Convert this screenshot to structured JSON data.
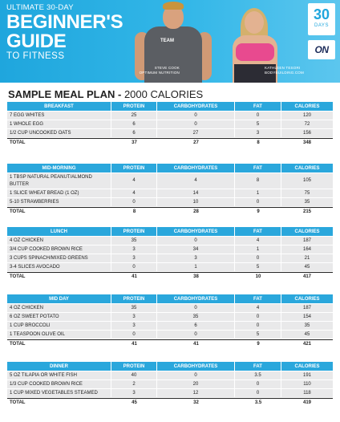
{
  "hero": {
    "subtitle": "ULTIMATE 30-DAY",
    "title_line1": "BEGINNER'S",
    "title_line2": "GUIDE",
    "title_line3": "TO FITNESS",
    "shirt_text": "TEAM",
    "caption_left": [
      "STEVE COOK",
      "OPTIMUM NUTRITION"
    ],
    "caption_right": [
      "KATHLEEN TESORI",
      "BODYBUILDING.COM"
    ],
    "badge_number": "30",
    "badge_label": "DAYS",
    "logo_text": "ON"
  },
  "plan": {
    "heading_bold": "SAMPLE MEAL PLAN -",
    "heading_rest": " 2000 CALORIES"
  },
  "columns": [
    "PROTEIN",
    "CARBOHYDRATES",
    "FAT",
    "CALORIES"
  ],
  "total_label": "TOTAL",
  "meals": [
    {
      "name": "BREAKFAST",
      "items": [
        {
          "food": "7 EGG WHITES",
          "protein": "25",
          "carbs": "0",
          "fat": "0",
          "calories": "120"
        },
        {
          "food": "1 WHOLE EGG",
          "protein": "6",
          "carbs": "0",
          "fat": "5",
          "calories": "72"
        },
        {
          "food": "1/2 CUP UNCOOKED OATS",
          "protein": "6",
          "carbs": "27",
          "fat": "3",
          "calories": "156"
        }
      ],
      "total": {
        "protein": "37",
        "carbs": "27",
        "fat": "8",
        "calories": "348"
      }
    },
    {
      "name": "MID-MORNING",
      "items": [
        {
          "food": "1 TBSP NATURAL PEANUT/ALMOND BUTTER",
          "protein": "4",
          "carbs": "4",
          "fat": "8",
          "calories": "105"
        },
        {
          "food": "1 SLICE WHEAT BREAD (1 OZ)",
          "protein": "4",
          "carbs": "14",
          "fat": "1",
          "calories": "75"
        },
        {
          "food": "5-10 STRAWBERRIES",
          "protein": "0",
          "carbs": "10",
          "fat": "0",
          "calories": "35"
        }
      ],
      "total": {
        "protein": "8",
        "carbs": "28",
        "fat": "9",
        "calories": "215"
      }
    },
    {
      "name": "LUNCH",
      "items": [
        {
          "food": "4 OZ CHICKEN",
          "protein": "35",
          "carbs": "0",
          "fat": "4",
          "calories": "187"
        },
        {
          "food": "3/4 CUP COOKED BROWN RICE",
          "protein": "3",
          "carbs": "34",
          "fat": "1",
          "calories": "164"
        },
        {
          "food": "3 CUPS SPINACH/MIXED GREENS",
          "protein": "3",
          "carbs": "3",
          "fat": "0",
          "calories": "21"
        },
        {
          "food": "3-4 SLICES AVOCADO",
          "protein": "0",
          "carbs": "1",
          "fat": "5",
          "calories": "45"
        }
      ],
      "total": {
        "protein": "41",
        "carbs": "38",
        "fat": "10",
        "calories": "417"
      }
    },
    {
      "name": "MID DAY",
      "items": [
        {
          "food": "4 OZ CHICKEN",
          "protein": "35",
          "carbs": "0",
          "fat": "4",
          "calories": "187"
        },
        {
          "food": "6 OZ  SWEET POTATO",
          "protein": "3",
          "carbs": "35",
          "fat": "0",
          "calories": "154"
        },
        {
          "food": "1 CUP BROCCOLI",
          "protein": "3",
          "carbs": "6",
          "fat": "0",
          "calories": "35"
        },
        {
          "food": "1 TEASPOON OLIVE OIL",
          "protein": "0",
          "carbs": "0",
          "fat": "5",
          "calories": "45"
        }
      ],
      "total": {
        "protein": "41",
        "carbs": "41",
        "fat": "9",
        "calories": "421"
      }
    },
    {
      "name": "DINNER",
      "items": [
        {
          "food": "5 OZ TILAPIA OR WHITE FISH",
          "protein": "40",
          "carbs": "0",
          "fat": "3.5",
          "calories": "191"
        },
        {
          "food": "1/3 CUP COOKED BROWN RICE",
          "protein": "2",
          "carbs": "20",
          "fat": "0",
          "calories": "110"
        },
        {
          "food": "1 CUP MIXED VEGETABLES STEAMED",
          "protein": "3",
          "carbs": "12",
          "fat": "0",
          "calories": "118"
        }
      ],
      "total": {
        "protein": "45",
        "carbs": "32",
        "fat": "3.5",
        "calories": "419"
      }
    }
  ]
}
